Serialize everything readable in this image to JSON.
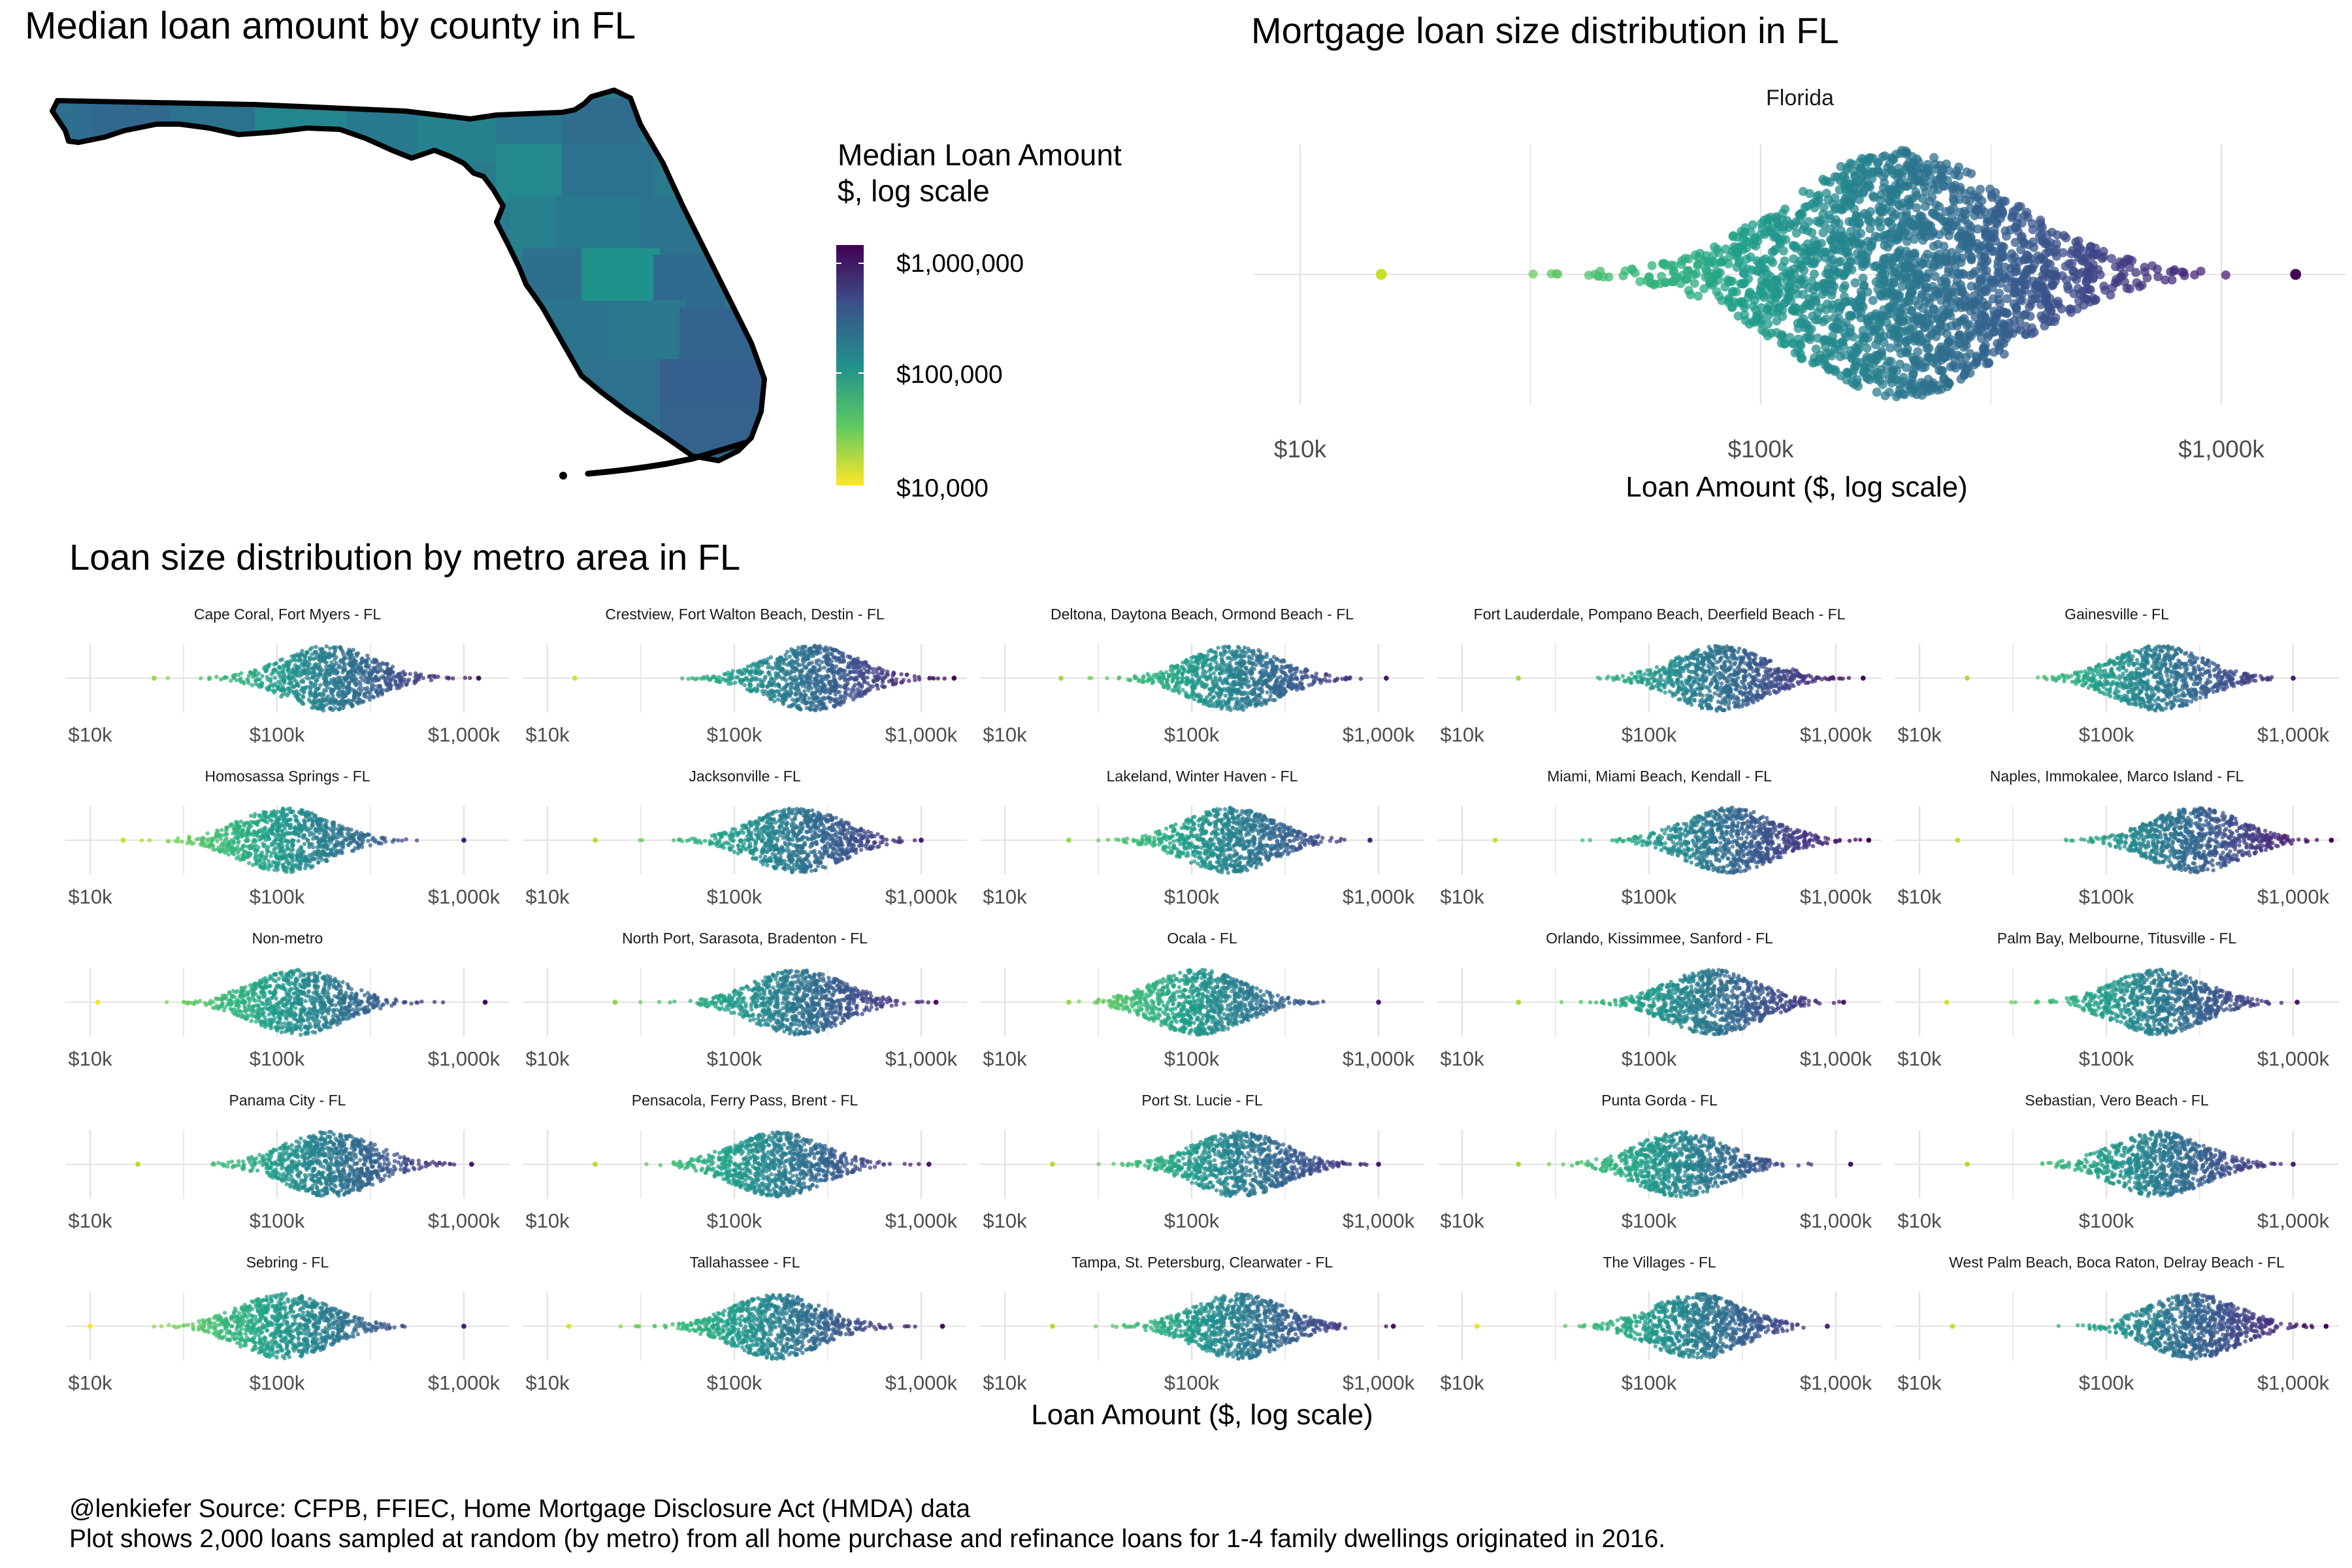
{
  "titles": {
    "map": "Median loan amount by county in FL",
    "state_panel": "Mortgage loan size distribution in FL",
    "metro_panel": "Loan size distribution by metro area in FL"
  },
  "legend": {
    "title_line1": "Median Loan Amount",
    "title_line2": "$, log scale",
    "labels": [
      "$1,000,000",
      "$100,000",
      "$10,000"
    ],
    "colors": [
      "#440154",
      "#3b528b",
      "#21908c",
      "#5dc963",
      "#fde725"
    ]
  },
  "caption": {
    "line1": "@lenkiefer Source: CFPB, FFIEC, Home Mortgage Disclosure Act (HMDA) data",
    "line2": "Plot shows 2,000 loans sampled at random (by metro) from all home purchase and refinance loans for 1-4 family dwellings originated in 2016."
  },
  "chart_data": [
    {
      "type": "map",
      "title": "Median loan amount by county in FL",
      "legend_title": "Median Loan Amount $, log scale",
      "scale": "log",
      "range": [
        10000,
        1000000
      ],
      "legend_ticks": [
        "$1,000,000",
        "$100,000",
        "$10,000"
      ]
    },
    {
      "type": "scatter",
      "subtype": "beeswarm",
      "title": "Mortgage loan size distribution in FL",
      "facet": "Florida",
      "xlabel": "Loan Amount ($, log scale)",
      "xscale": "log",
      "xlim": [
        10000,
        1000000
      ],
      "x_ticks": [
        "$10k",
        "$100k",
        "$1,000k"
      ],
      "summary": {
        "min": 15000,
        "q1": 130000,
        "median": 200000,
        "q3": 290000,
        "max": 1450000
      }
    },
    {
      "type": "scatter",
      "subtype": "beeswarm-facets",
      "title": "Loan size distribution by metro area in FL",
      "xlabel": "Loan Amount ($, log scale)",
      "xscale": "log",
      "xlim": [
        10000,
        1000000
      ],
      "x_ticks": [
        "$10k",
        "$100k",
        "$1,000k"
      ],
      "facets": [
        {
          "name": "Cape Coral, Fort Myers - FL",
          "min": 22000,
          "median": 190000,
          "max": 1200000
        },
        {
          "name": "Crestview, Fort Walton Beach, Destin - FL",
          "min": 14000,
          "median": 260000,
          "max": 1500000
        },
        {
          "name": "Deltona, Daytona Beach, Ormond Beach - FL",
          "min": 20000,
          "median": 170000,
          "max": 1100000
        },
        {
          "name": "Fort Lauderdale, Pompano Beach, Deerfield Beach - FL",
          "min": 20000,
          "median": 240000,
          "max": 1400000
        },
        {
          "name": "Gainesville - FL",
          "min": 18000,
          "median": 190000,
          "max": 1000000
        },
        {
          "name": "Homosassa Springs - FL",
          "min": 15000,
          "median": 110000,
          "max": 1000000
        },
        {
          "name": "Jacksonville - FL",
          "min": 18000,
          "median": 220000,
          "max": 1000000
        },
        {
          "name": "Lakeland, Winter Haven - FL",
          "min": 22000,
          "median": 160000,
          "max": 900000
        },
        {
          "name": "Miami, Miami Beach, Kendall - FL",
          "min": 15000,
          "median": 270000,
          "max": 1500000
        },
        {
          "name": "Naples, Immokalee, Marco Island - FL",
          "min": 16000,
          "median": 300000,
          "max": 1600000
        },
        {
          "name": "Non-metro",
          "min": 11000,
          "median": 130000,
          "max": 1300000
        },
        {
          "name": "North Port, Sarasota, Bradenton - FL",
          "min": 23000,
          "median": 220000,
          "max": 1200000
        },
        {
          "name": "Ocala - FL",
          "min": 22000,
          "median": 110000,
          "max": 1000000
        },
        {
          "name": "Orlando, Kissimmee, Sanford - FL",
          "min": 20000,
          "median": 220000,
          "max": 1100000
        },
        {
          "name": "Palm Bay, Melbourne, Titusville - FL",
          "min": 14000,
          "median": 190000,
          "max": 1050000
        },
        {
          "name": "Panama City - FL",
          "min": 18000,
          "median": 190000,
          "max": 1100000
        },
        {
          "name": "Pensacola, Ferry Pass, Brent - FL",
          "min": 18000,
          "median": 170000,
          "max": 1100000
        },
        {
          "name": "Port St. Lucie - FL",
          "min": 18000,
          "median": 180000,
          "max": 1000000
        },
        {
          "name": "Punta Gorda - FL",
          "min": 20000,
          "median": 150000,
          "max": 1200000
        },
        {
          "name": "Sebastian, Vero Beach - FL",
          "min": 18000,
          "median": 190000,
          "max": 1000000
        },
        {
          "name": "Sebring - FL",
          "min": 10000,
          "median": 110000,
          "max": 1000000
        },
        {
          "name": "Tallahassee - FL",
          "min": 13000,
          "median": 170000,
          "max": 1300000
        },
        {
          "name": "Tampa, St. Petersburg, Clearwater - FL",
          "min": 18000,
          "median": 180000,
          "max": 1200000
        },
        {
          "name": "The Villages - FL",
          "min": 12000,
          "median": 180000,
          "max": 900000
        },
        {
          "name": "West Palm Beach, Boca Raton, Delray Beach - FL",
          "min": 15000,
          "median": 290000,
          "max": 1500000
        }
      ]
    }
  ]
}
